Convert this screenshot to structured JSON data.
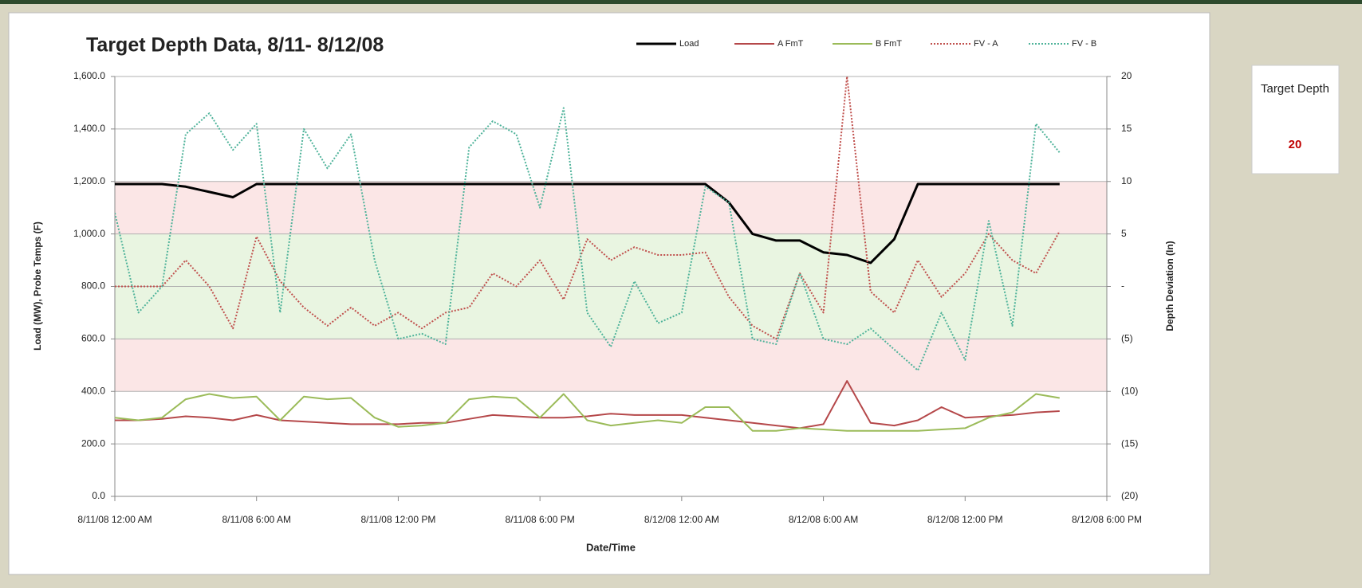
{
  "chart_data": {
    "type": "line",
    "title": "Target Depth Data, 8/11- 8/12/08",
    "xlabel": "Date/Time",
    "ylabel": "Load (MW), Probe Temps (F)",
    "y2label": "Depth Deviation (In)",
    "x": [
      "2008-08-11T00:00",
      "2008-08-11T01:00",
      "2008-08-11T02:00",
      "2008-08-11T03:00",
      "2008-08-11T04:00",
      "2008-08-11T05:00",
      "2008-08-11T06:00",
      "2008-08-11T07:00",
      "2008-08-11T08:00",
      "2008-08-11T09:00",
      "2008-08-11T10:00",
      "2008-08-11T11:00",
      "2008-08-11T12:00",
      "2008-08-11T13:00",
      "2008-08-11T14:00",
      "2008-08-11T15:00",
      "2008-08-11T16:00",
      "2008-08-11T17:00",
      "2008-08-11T18:00",
      "2008-08-11T19:00",
      "2008-08-11T20:00",
      "2008-08-11T21:00",
      "2008-08-11T22:00",
      "2008-08-11T23:00",
      "2008-08-12T00:00",
      "2008-08-12T01:00",
      "2008-08-12T02:00",
      "2008-08-12T03:00",
      "2008-08-12T04:00",
      "2008-08-12T05:00",
      "2008-08-12T06:00",
      "2008-08-12T07:00",
      "2008-08-12T08:00",
      "2008-08-12T09:00",
      "2008-08-12T10:00",
      "2008-08-12T11:00",
      "2008-08-12T12:00",
      "2008-08-12T13:00",
      "2008-08-12T14:00",
      "2008-08-12T15:00",
      "2008-08-12T16:00"
    ],
    "xlim": [
      "2008-08-11T00:00",
      "2008-08-12T18:00"
    ],
    "xticks": [
      {
        "value": "2008-08-11T00:00",
        "label": "8/11/08 12:00 AM"
      },
      {
        "value": "2008-08-11T06:00",
        "label": "8/11/08 6:00 AM"
      },
      {
        "value": "2008-08-11T12:00",
        "label": "8/11/08 12:00 PM"
      },
      {
        "value": "2008-08-11T18:00",
        "label": "8/11/08 6:00 PM"
      },
      {
        "value": "2008-08-12T00:00",
        "label": "8/12/08 12:00 AM"
      },
      {
        "value": "2008-08-12T06:00",
        "label": "8/12/08 6:00 AM"
      },
      {
        "value": "2008-08-12T12:00",
        "label": "8/12/08 12:00 PM"
      },
      {
        "value": "2008-08-12T18:00",
        "label": "8/12/08 6:00 PM"
      }
    ],
    "ylim": [
      0,
      1600
    ],
    "yticks": [
      {
        "value": 0,
        "label": "0.0"
      },
      {
        "value": 200,
        "label": "200.0"
      },
      {
        "value": 400,
        "label": "400.0"
      },
      {
        "value": 600,
        "label": "600.0"
      },
      {
        "value": 800,
        "label": "800.0"
      },
      {
        "value": 1000,
        "label": "1,000.0"
      },
      {
        "value": 1200,
        "label": "1,200.0"
      },
      {
        "value": 1400,
        "label": "1,400.0"
      },
      {
        "value": 1600,
        "label": "1,600.0"
      }
    ],
    "y2lim": [
      -20,
      20
    ],
    "y2ticks": [
      {
        "value": -20,
        "label": "(20)"
      },
      {
        "value": -15,
        "label": "(15)"
      },
      {
        "value": -10,
        "label": "(10)"
      },
      {
        "value": -5,
        "label": "(5)"
      },
      {
        "value": 0,
        "label": "-"
      },
      5,
      10,
      15,
      20
    ],
    "grid": true,
    "bands": [
      {
        "y2": [
          5,
          10
        ],
        "color": "#fbe6e6"
      },
      {
        "y2": [
          -5,
          5
        ],
        "color": "#e9f5e1"
      },
      {
        "y2": [
          -10,
          -5
        ],
        "color": "#fbe6e6"
      }
    ],
    "legend": "top",
    "series": [
      {
        "name": "Load",
        "color": "#000000",
        "style": "solid",
        "width": 3,
        "values": [
          1190,
          1190,
          1190,
          1180,
          1160,
          1140,
          1190,
          1190,
          1190,
          1190,
          1190,
          1190,
          1190,
          1190,
          1190,
          1190,
          1190,
          1190,
          1190,
          1190,
          1190,
          1190,
          1190,
          1190,
          1190,
          1190,
          1120,
          1000,
          975,
          975,
          930,
          920,
          890,
          980,
          1190,
          1190,
          1190,
          1190,
          1190,
          1190,
          1190
        ]
      },
      {
        "name": "A FmT",
        "color": "#b5484a",
        "style": "solid",
        "width": 2,
        "values": [
          290,
          290,
          295,
          305,
          300,
          290,
          310,
          290,
          285,
          280,
          275,
          275,
          275,
          280,
          280,
          295,
          310,
          305,
          300,
          300,
          305,
          315,
          310,
          310,
          310,
          300,
          290,
          280,
          270,
          260,
          275,
          440,
          280,
          270,
          290,
          340,
          300,
          305,
          310,
          320,
          325
        ]
      },
      {
        "name": "B FmT",
        "color": "#9bbb59",
        "style": "solid",
        "width": 2,
        "values": [
          300,
          290,
          300,
          370,
          390,
          375,
          380,
          290,
          380,
          370,
          375,
          300,
          265,
          270,
          280,
          370,
          380,
          375,
          300,
          390,
          290,
          270,
          280,
          290,
          280,
          340,
          340,
          250,
          250,
          260,
          255,
          250,
          250,
          250,
          250,
          255,
          260,
          300,
          320,
          390,
          375
        ]
      },
      {
        "name": "FV - A",
        "color": "#c0504d",
        "style": "dotted",
        "width": 2,
        "axis": "y2",
        "values": [
          0,
          0,
          0,
          2.5,
          0,
          -4,
          4.75,
          0.5,
          -2,
          -3.75,
          -2,
          -3.75,
          -2.5,
          -4,
          -2.5,
          -2,
          1.25,
          0,
          2.5,
          -1.25,
          4.5,
          2.5,
          3.75,
          3,
          3,
          3.25,
          -1,
          -3.75,
          -5,
          1.25,
          -2.5,
          20,
          -0.5,
          -2.5,
          2.5,
          -1,
          1.25,
          5,
          2.5,
          1.25,
          5.25
        ]
      },
      {
        "name": "FV - B",
        "color": "#4fb39a",
        "style": "dotted",
        "width": 2,
        "axis": "y2",
        "values": [
          7,
          -2.5,
          0,
          14.5,
          16.5,
          13,
          15.5,
          -2.5,
          15,
          11.25,
          14.5,
          2.5,
          -5,
          -4.5,
          -5.5,
          13.25,
          15.75,
          14.5,
          7.5,
          17,
          -2.5,
          -5.75,
          0.5,
          -3.5,
          -2.5,
          9.5,
          8,
          -5,
          -5.5,
          1.25,
          -5,
          -5.5,
          -4,
          -6,
          -8,
          -2.5,
          -7,
          6.25,
          -3.75,
          15.5,
          12.75
        ]
      }
    ]
  },
  "side_box": {
    "label": "Target Depth",
    "value": 20
  }
}
